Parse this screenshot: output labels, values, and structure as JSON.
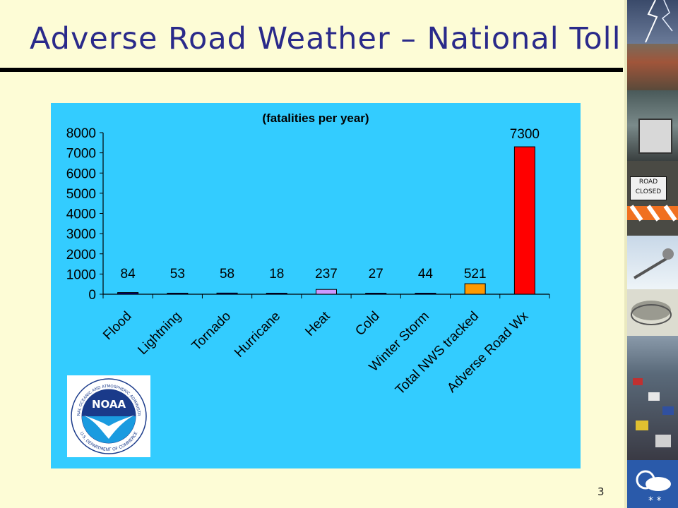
{
  "slide": {
    "title": "Adverse Road Weather – National Toll",
    "page_number": "3"
  },
  "logo": {
    "ring_top_text": "NATIONAL OCEANIC AND ATMOSPHERIC ADMINISTRATION",
    "ring_bottom_text": "U.S. DEPARTMENT OF COMMERCE",
    "wordmark": "NOAA"
  },
  "side_strip": {
    "road_sign_line1": "ROAD",
    "road_sign_line2": "CLOSED"
  },
  "chart_data": {
    "type": "bar",
    "title": "(fatalities per year)",
    "xlabel": "",
    "ylabel": "",
    "categories": [
      "Flood",
      "Lightning",
      "Tornado",
      "Hurricane",
      "Heat",
      "Cold",
      "Winter Storm",
      "Total NWS tracked",
      "Adverse Road Wx"
    ],
    "values": [
      84,
      53,
      58,
      18,
      237,
      27,
      44,
      521,
      7300
    ],
    "colors": [
      "#000080",
      "#000080",
      "#000080",
      "#000080",
      "#cc99ff",
      "#000080",
      "#000080",
      "#ff9900",
      "#ff0000"
    ],
    "ylim": [
      0,
      8000
    ],
    "yticks": [
      0,
      1000,
      2000,
      3000,
      4000,
      5000,
      6000,
      7000,
      8000
    ],
    "grid": false,
    "legend": "none"
  }
}
